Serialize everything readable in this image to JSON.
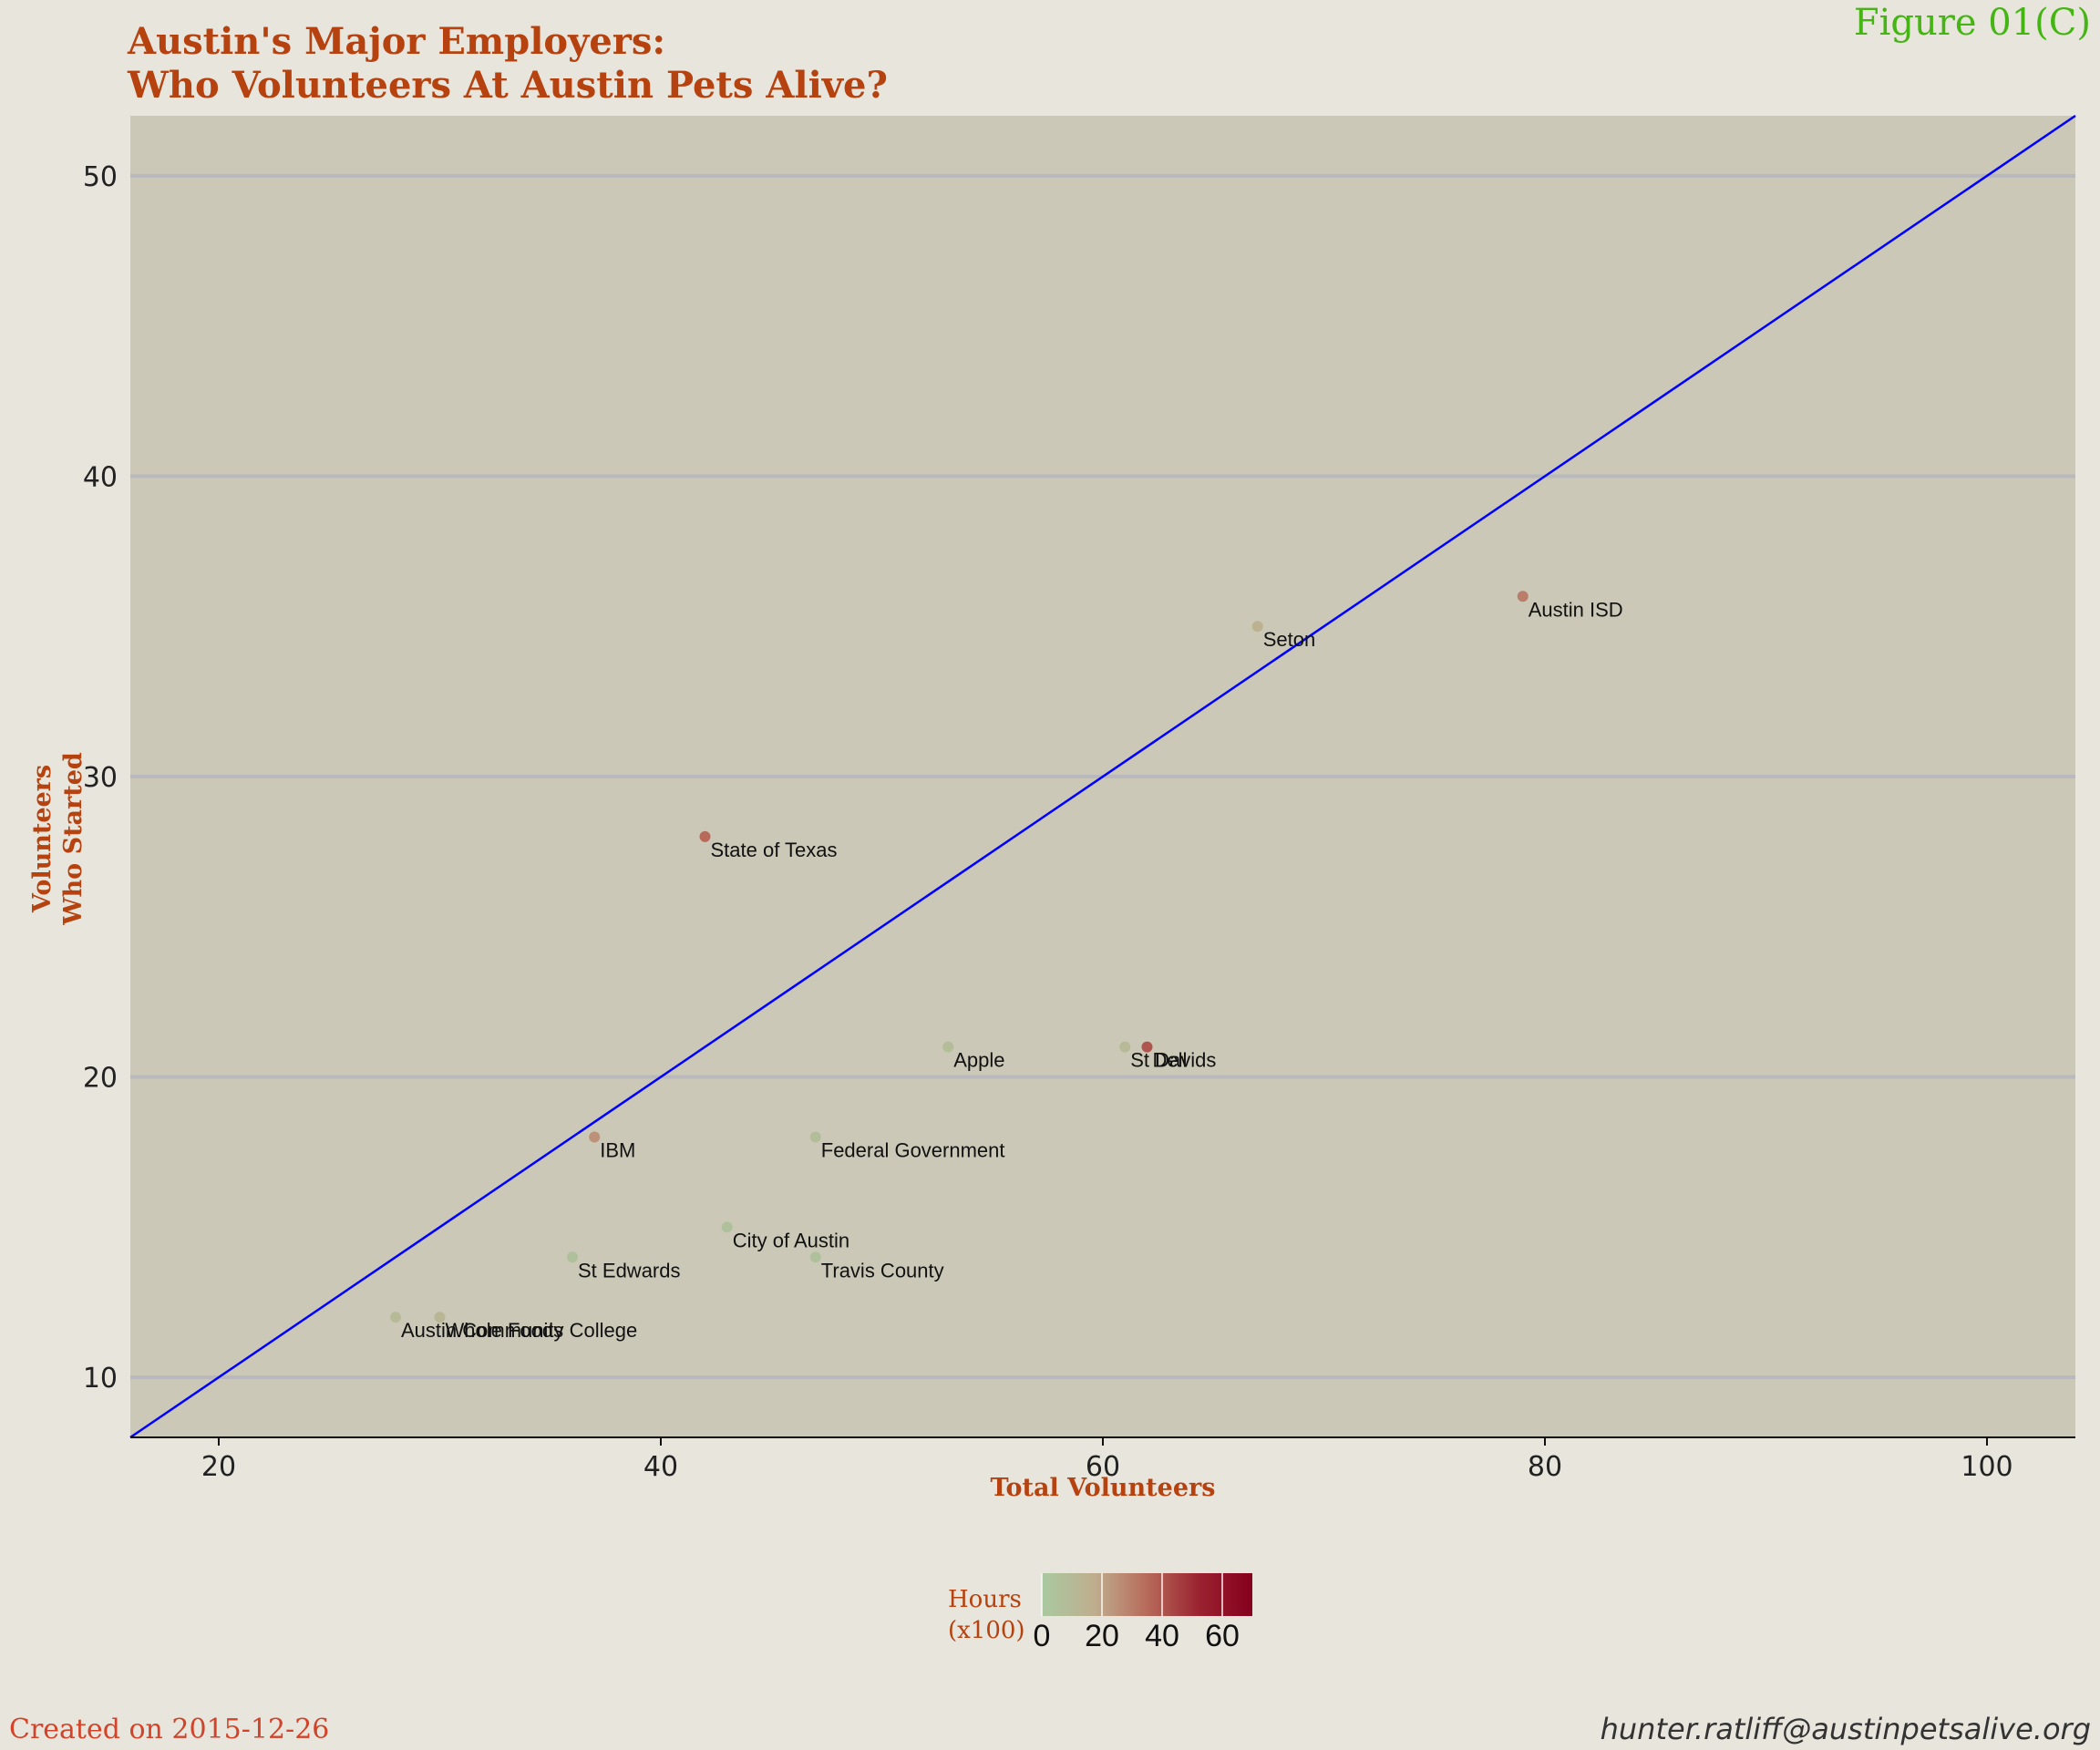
{
  "title_line1": "Austin's Major Employers:",
  "title_line2": "Who Volunteers At Austin Pets Alive?",
  "figure_label": "Figure 01(C)",
  "created": "Created on 2015-12-26",
  "email": "hunter.ratliff@austinpetsalive.org",
  "colors": {
    "title": "#b5420f",
    "figure_label": "#44b513",
    "panel": "#cbc8b7",
    "background": "#e8e5dd",
    "reference_line": "#0000ff",
    "gridline": "#b9b9bd",
    "colorscale_low": "#a9c9a0",
    "colorscale_mid": "#bfae8e",
    "colorscale_high": "#85001d"
  },
  "chart_data": {
    "type": "scatter",
    "xlabel": "Total Volunteers",
    "ylabel_line1": "Volunteers",
    "ylabel_line2": "Who Started",
    "xlim": [
      16,
      104
    ],
    "ylim": [
      8,
      52
    ],
    "xticks": [
      20,
      40,
      60,
      80,
      100
    ],
    "yticks": [
      10,
      20,
      30,
      40,
      50
    ],
    "grid": "horizontal major lines",
    "reference_line": {
      "slope": 0.5,
      "intercept": 0,
      "color": "#0000ff"
    },
    "color_legend": {
      "title_line1": "Hours",
      "title_line2": "(x100)",
      "ticks": [
        0,
        20,
        40,
        60
      ],
      "range": [
        0,
        70
      ],
      "placement": "bottom"
    },
    "points": [
      {
        "label": "Austin ISD",
        "x": 79,
        "y": 36,
        "hours": 30
      },
      {
        "label": "Seton",
        "x": 67,
        "y": 35,
        "hours": 15
      },
      {
        "label": "State of Texas",
        "x": 42,
        "y": 28,
        "hours": 35
      },
      {
        "label": "Apple",
        "x": 53,
        "y": 21,
        "hours": 8
      },
      {
        "label": "St Davids",
        "x": 61,
        "y": 21,
        "hours": 10
      },
      {
        "label": "Dell",
        "x": 62,
        "y": 21,
        "hours": 40
      },
      {
        "label": "IBM",
        "x": 37,
        "y": 18,
        "hours": 25
      },
      {
        "label": "Federal Government",
        "x": 47,
        "y": 18,
        "hours": 8
      },
      {
        "label": "City of Austin",
        "x": 43,
        "y": 15,
        "hours": 5
      },
      {
        "label": "St Edwards",
        "x": 36,
        "y": 14,
        "hours": 5
      },
      {
        "label": "Travis County",
        "x": 47,
        "y": 14,
        "hours": 5
      },
      {
        "label": "Austin Community College",
        "x": 28,
        "y": 12,
        "hours": 10
      },
      {
        "label": "Whole Foods",
        "x": 30,
        "y": 12,
        "hours": 12
      }
    ]
  }
}
